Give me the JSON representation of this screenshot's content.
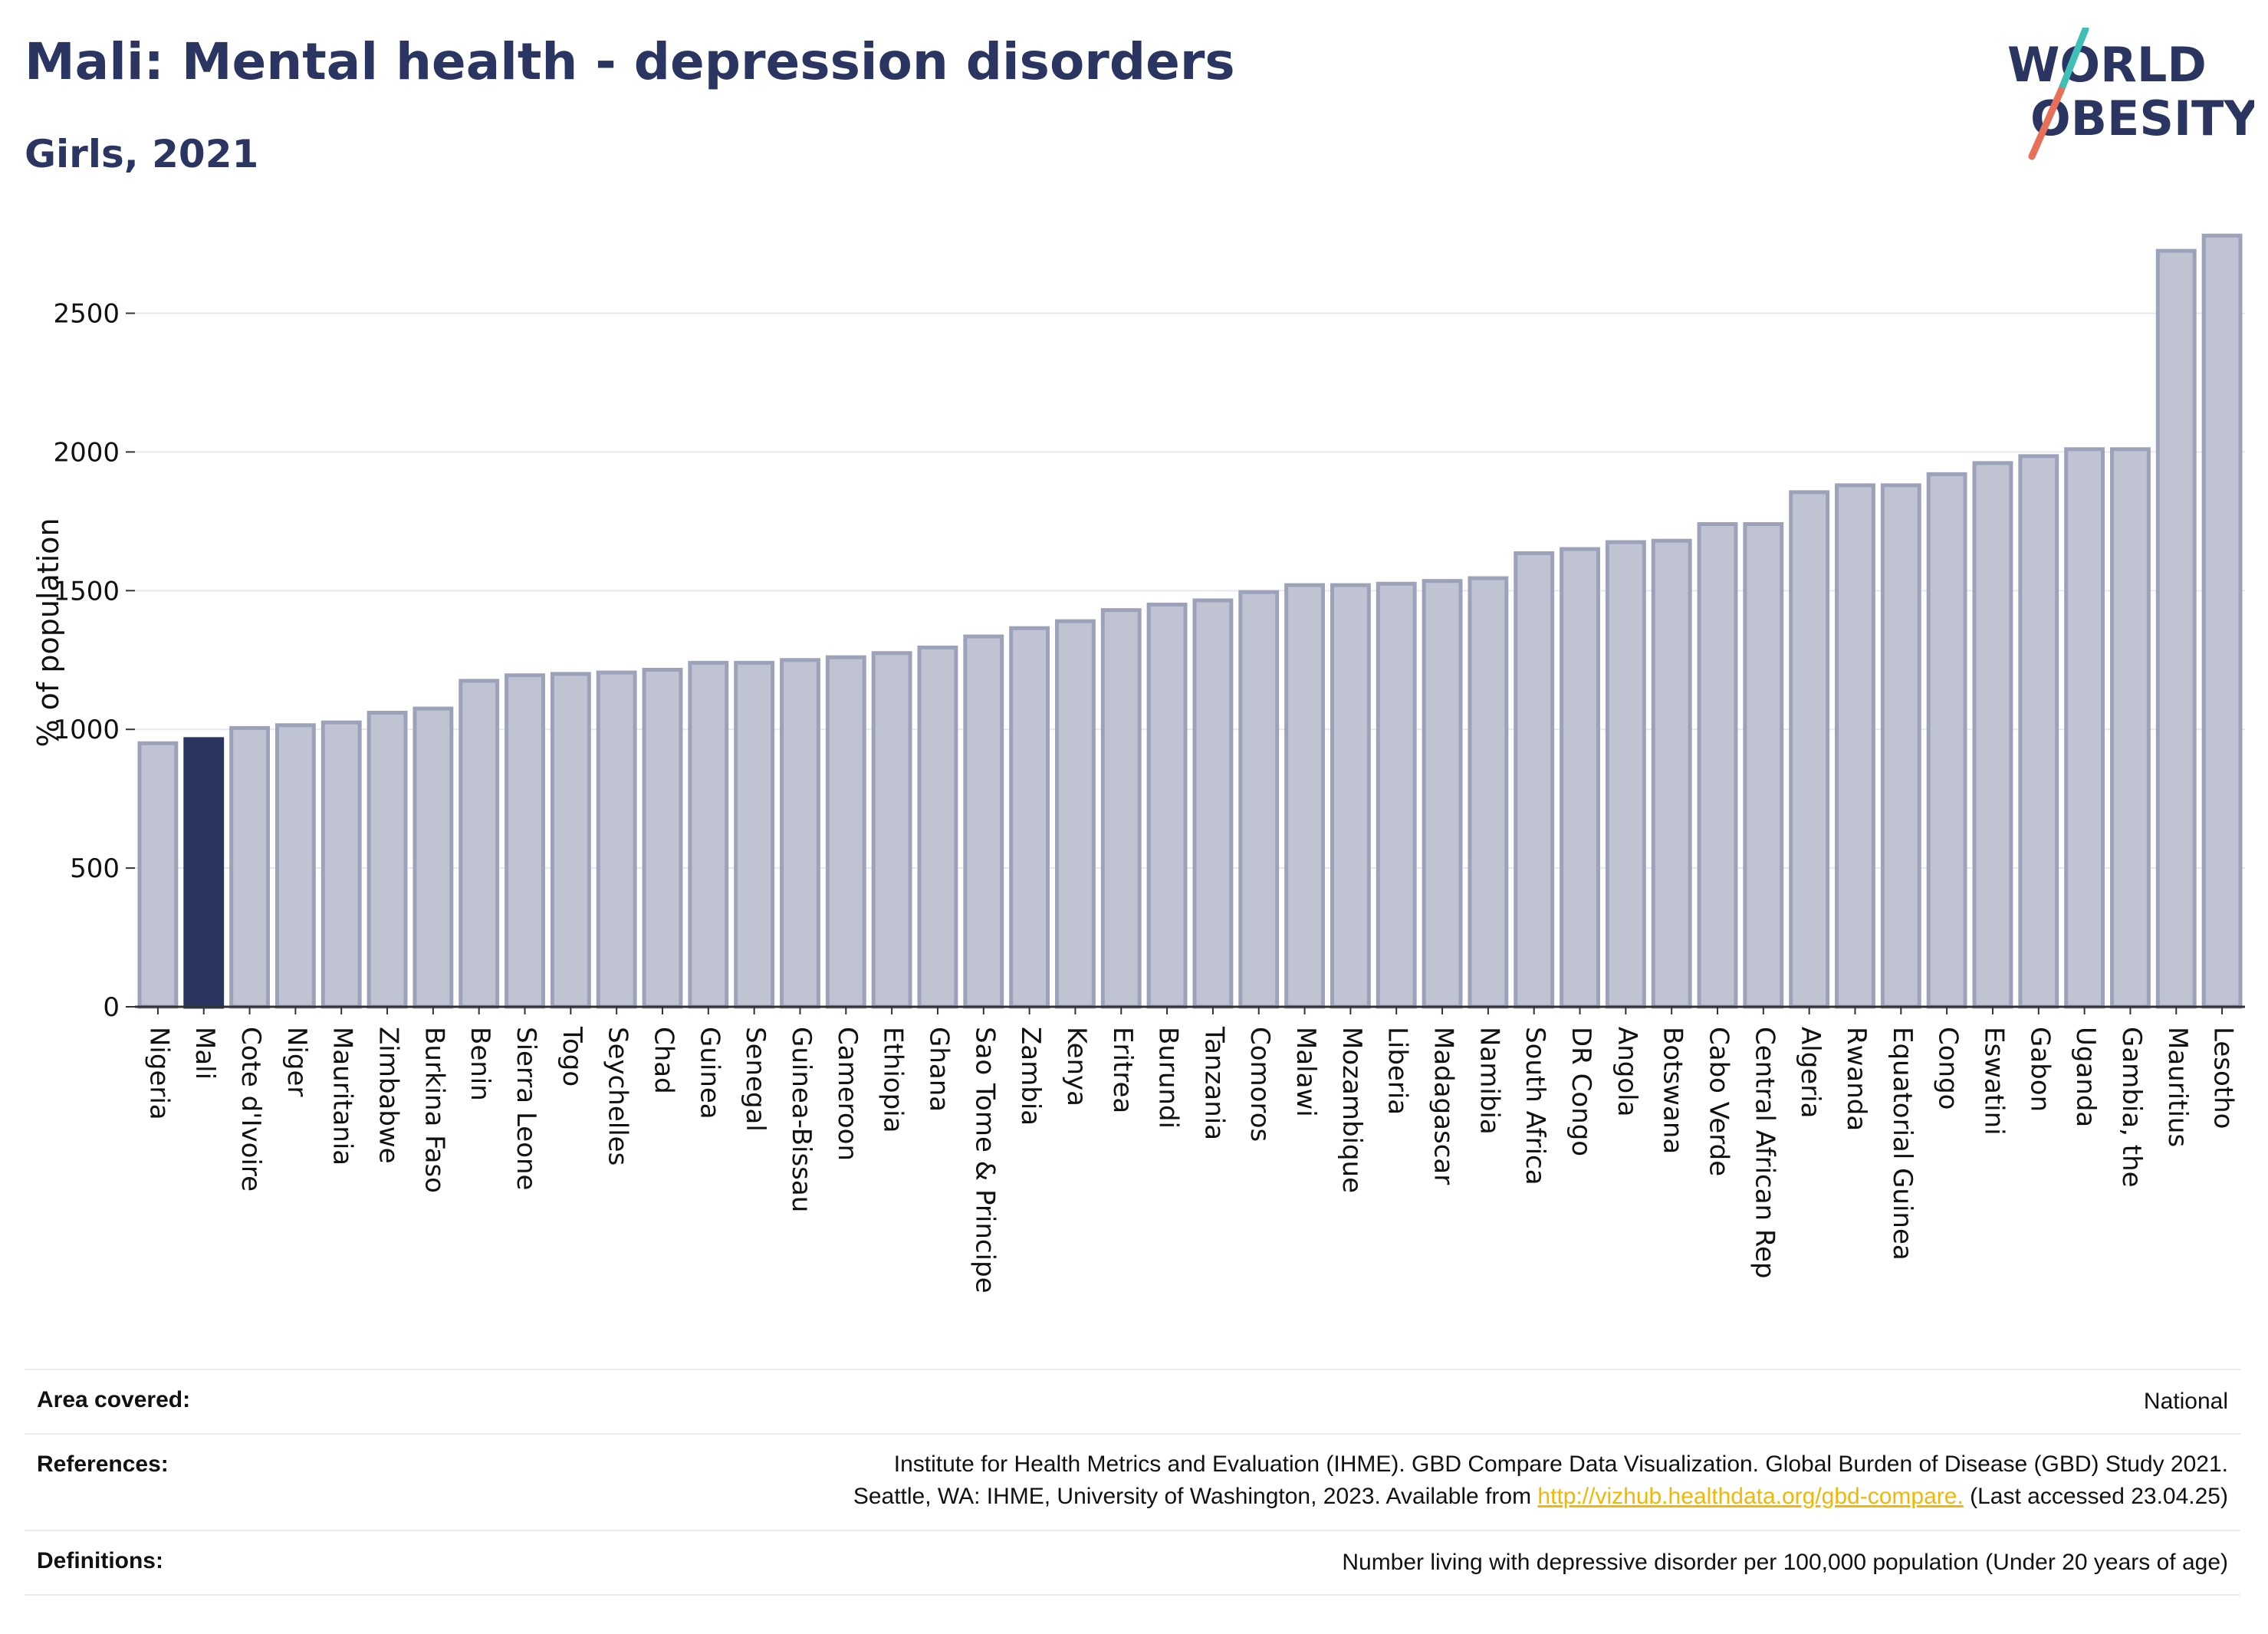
{
  "header": {
    "title": "Mali: Mental health - depression disorders",
    "subtitle": "Girls, 2021"
  },
  "logo": {
    "line1": "WORLD",
    "line2": "OBESITY"
  },
  "colors": {
    "highlight": "#2a3561",
    "bar_fill": "#bfc3d2",
    "bar_stroke": "#9ca2ba",
    "accent_link": "#f2b705",
    "logo_slash_teal": "#3fbfb5",
    "logo_slash_coral": "#e8705a"
  },
  "chart_data": {
    "type": "bar",
    "ylabel": "% of population",
    "xlabel": "",
    "ylim": [
      0,
      2800
    ],
    "yticks": [
      0,
      500,
      1000,
      1500,
      2000,
      2500
    ],
    "grid": true,
    "highlight": "Mali",
    "categories": [
      "Nigeria",
      "Mali",
      "Cote d'Ivoire",
      "Niger",
      "Mauritania",
      "Zimbabwe",
      "Burkina Faso",
      "Benin",
      "Sierra Leone",
      "Togo",
      "Seychelles",
      "Chad",
      "Guinea",
      "Senegal",
      "Guinea-Bissau",
      "Cameroon",
      "Ethiopia",
      "Ghana",
      "Sao Tome & Principe",
      "Zambia",
      "Kenya",
      "Eritrea",
      "Burundi",
      "Tanzania",
      "Comoros",
      "Malawi",
      "Mozambique",
      "Liberia",
      "Madagascar",
      "Namibia",
      "South Africa",
      "DR Congo",
      "Angola",
      "Botswana",
      "Cabo Verde",
      "Central African Rep",
      "Algeria",
      "Rwanda",
      "Equatorial Guinea",
      "Congo",
      "Eswatini",
      "Gabon",
      "Uganda",
      "Gambia, the",
      "Mauritius",
      "Lesotho"
    ],
    "values": [
      950,
      965,
      1005,
      1015,
      1025,
      1060,
      1075,
      1175,
      1195,
      1200,
      1205,
      1215,
      1240,
      1240,
      1250,
      1260,
      1275,
      1295,
      1335,
      1365,
      1390,
      1430,
      1450,
      1465,
      1495,
      1520,
      1520,
      1525,
      1535,
      1545,
      1635,
      1650,
      1675,
      1680,
      1740,
      1740,
      1855,
      1880,
      1880,
      1920,
      1960,
      1985,
      2010,
      2010,
      2725,
      2780
    ]
  },
  "info": {
    "area_label": "Area covered:",
    "area_value": "National",
    "references_label": "References:",
    "references_line1": "Institute for Health Metrics and Evaluation (IHME). GBD Compare Data Visualization. Global Burden of Disease (GBD) Study 2021.",
    "references_line2_pre": "Seattle, WA: IHME, University of Washington, 2023. Available from ",
    "references_link": "http://vizhub.healthdata.org/gbd-compare.",
    "references_line2_post": " (Last accessed 23.04.25)",
    "definitions_label": "Definitions:",
    "definitions_value": "Number living with depressive disorder per 100,000 population (Under 20 years of age)"
  }
}
